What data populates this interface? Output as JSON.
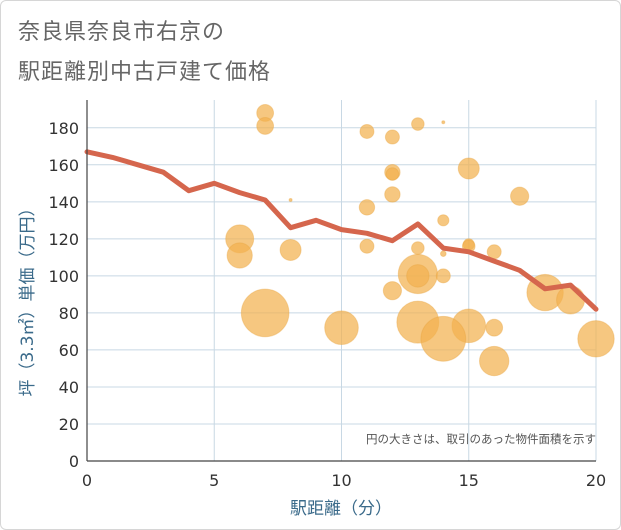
{
  "title_line1": "奈良県奈良市右京の",
  "title_line2": "駅距離別中古戸建て価格",
  "chart_data": {
    "type": "scatter",
    "xlabel": "駅距離（分）",
    "ylabel": "坪（3.3㎡）単価（万円）",
    "xlim": [
      0,
      20
    ],
    "ylim": [
      0,
      195
    ],
    "xticks": [
      0,
      5,
      10,
      15,
      20
    ],
    "yticks": [
      0,
      20,
      40,
      60,
      80,
      100,
      120,
      140,
      160,
      180
    ],
    "grid": true,
    "annotation": "円の大きさは、取引のあった物件面積を示す",
    "bubble_color": "#f2b24f",
    "line_color": "#d5664d",
    "series": [
      {
        "name": "bubbles",
        "points": [
          {
            "x": 7,
            "y": 188,
            "s": 1.2
          },
          {
            "x": 7,
            "y": 181,
            "s": 1.2
          },
          {
            "x": 11,
            "y": 178,
            "s": 1.0
          },
          {
            "x": 13,
            "y": 182,
            "s": 0.9
          },
          {
            "x": 14,
            "y": 183,
            "s": 0.2
          },
          {
            "x": 12,
            "y": 175,
            "s": 1.0
          },
          {
            "x": 12,
            "y": 156,
            "s": 1.1
          },
          {
            "x": 12,
            "y": 155,
            "s": 0.9
          },
          {
            "x": 15,
            "y": 158,
            "s": 1.5
          },
          {
            "x": 8,
            "y": 141,
            "s": 0.2
          },
          {
            "x": 12,
            "y": 144,
            "s": 1.1
          },
          {
            "x": 11,
            "y": 137,
            "s": 1.1
          },
          {
            "x": 17,
            "y": 143,
            "s": 1.3
          },
          {
            "x": 14,
            "y": 130,
            "s": 0.8
          },
          {
            "x": 6,
            "y": 120,
            "s": 2.0
          },
          {
            "x": 6,
            "y": 111,
            "s": 1.8
          },
          {
            "x": 8,
            "y": 114,
            "s": 1.5
          },
          {
            "x": 11,
            "y": 116,
            "s": 1.0
          },
          {
            "x": 13,
            "y": 115,
            "s": 0.9
          },
          {
            "x": 14,
            "y": 112,
            "s": 0.4
          },
          {
            "x": 15,
            "y": 117,
            "s": 0.8
          },
          {
            "x": 15,
            "y": 116,
            "s": 0.9
          },
          {
            "x": 16,
            "y": 113,
            "s": 1.0
          },
          {
            "x": 13,
            "y": 101,
            "s": 2.8
          },
          {
            "x": 13,
            "y": 100,
            "s": 1.6
          },
          {
            "x": 14,
            "y": 100,
            "s": 1.0
          },
          {
            "x": 12,
            "y": 92,
            "s": 1.3
          },
          {
            "x": 18,
            "y": 91,
            "s": 2.6
          },
          {
            "x": 19,
            "y": 87,
            "s": 2.0
          },
          {
            "x": 7,
            "y": 80,
            "s": 3.4
          },
          {
            "x": 10,
            "y": 72,
            "s": 2.4
          },
          {
            "x": 13,
            "y": 75,
            "s": 3.0
          },
          {
            "x": 15,
            "y": 73,
            "s": 2.4
          },
          {
            "x": 16,
            "y": 72,
            "s": 1.2
          },
          {
            "x": 14,
            "y": 66,
            "s": 3.2
          },
          {
            "x": 20,
            "y": 66,
            "s": 2.6
          },
          {
            "x": 16,
            "y": 54,
            "s": 2.1
          }
        ]
      },
      {
        "name": "average",
        "x": [
          0,
          1,
          2,
          3,
          4,
          5,
          6,
          7,
          8,
          9,
          10,
          11,
          12,
          13,
          14,
          15,
          16,
          17,
          18,
          19,
          20
        ],
        "y": [
          167,
          164,
          160,
          156,
          146,
          150,
          145,
          141,
          126,
          130,
          125,
          123,
          119,
          128,
          115,
          113,
          108,
          103,
          93,
          95,
          82
        ]
      }
    ]
  }
}
